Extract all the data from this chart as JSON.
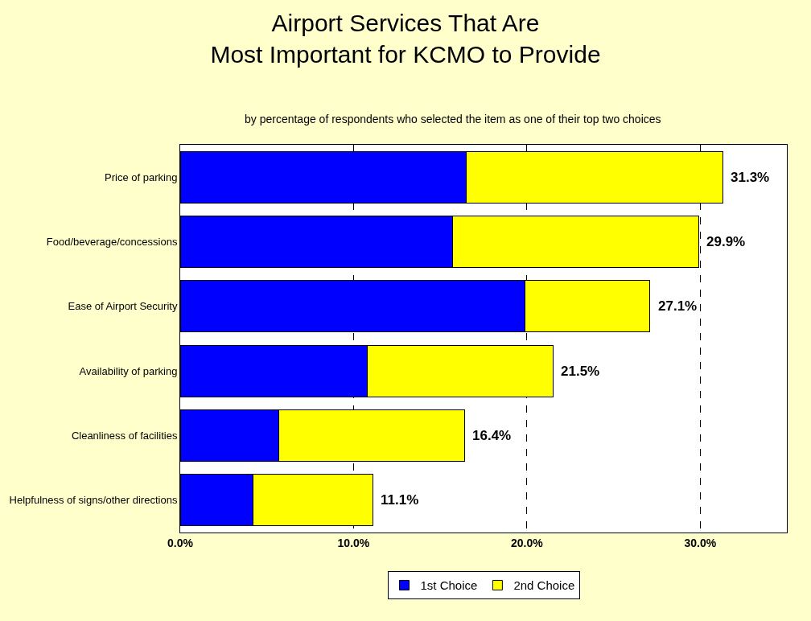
{
  "chart_data": {
    "type": "bar",
    "orientation": "horizontal",
    "stacked": true,
    "title": "Airport Services That Are\nMost Important for KCMO to Provide",
    "subtitle": "by percentage of respondents who selected the item as one of their top two choices",
    "categories": [
      "Price of parking",
      "Food/beverage/concessions",
      "Ease of Airport Security",
      "Availability of parking",
      "Cleanliness of facilities",
      "Helpfulness of signs/other directions"
    ],
    "series": [
      {
        "name": "1st Choice",
        "color": "#0000ff",
        "values": [
          16.5,
          15.7,
          19.9,
          10.8,
          5.7,
          4.2
        ]
      },
      {
        "name": "2nd Choice",
        "color": "#ffff00",
        "values": [
          14.8,
          14.2,
          7.2,
          10.7,
          10.7,
          6.9
        ]
      }
    ],
    "totals": [
      "31.3%",
      "29.9%",
      "27.1%",
      "21.5%",
      "16.4%",
      "11.1%"
    ],
    "xlim": [
      0,
      35
    ],
    "xticks": [
      {
        "value": 0,
        "label": "0.0%"
      },
      {
        "value": 10,
        "label": "10.0%"
      },
      {
        "value": 20,
        "label": "20.0%"
      },
      {
        "value": 30,
        "label": "30.0%"
      }
    ],
    "grid": "x",
    "line_style": "dashed",
    "legend": "bottom"
  }
}
